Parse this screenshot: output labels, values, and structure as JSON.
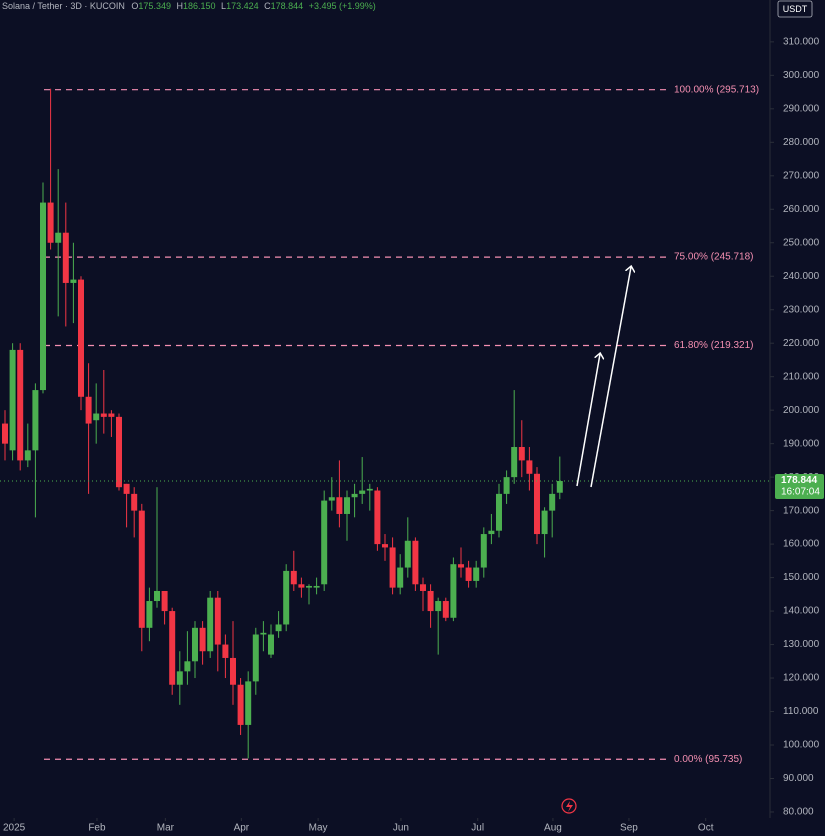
{
  "header": {
    "symbol": "Solana / Tether · 3D · KUCOIN",
    "o_key": "O",
    "open": "175.349",
    "h_key": "H",
    "high": "186.150",
    "l_key": "L",
    "low": "173.424",
    "c_key": "C",
    "close": "178.844",
    "change": "+3.495 (+1.99%)",
    "currency": "USDT"
  },
  "chart_data": {
    "type": "candlestick",
    "up_color": "#4caf50",
    "down_color": "#f23645",
    "open": [
      196,
      188,
      218,
      185,
      188,
      206,
      262,
      250,
      253,
      238,
      239,
      204,
      197,
      199,
      199,
      198,
      178,
      175,
      170,
      135,
      143,
      146,
      140,
      118,
      122,
      125,
      135,
      128,
      144,
      130,
      126,
      118,
      106,
      119,
      133,
      127,
      134,
      136,
      152,
      148,
      147,
      147,
      148,
      173,
      174,
      169,
      174,
      175,
      176,
      176,
      160,
      159,
      147,
      153,
      161,
      148,
      146,
      140,
      143,
      138,
      154,
      153,
      149,
      153,
      163,
      164,
      175,
      180,
      189,
      185,
      181,
      163,
      170,
      175.349
    ],
    "high": [
      200,
      220,
      220,
      196,
      208,
      268,
      296,
      272,
      262,
      250,
      240,
      214,
      208,
      212,
      200,
      199,
      178,
      177,
      172,
      147,
      177,
      146,
      141,
      128,
      134,
      137,
      137,
      146,
      146,
      133,
      137,
      120,
      122,
      135,
      137,
      136,
      140,
      154,
      158,
      150,
      148,
      150,
      176,
      180,
      185,
      176,
      178,
      186,
      178,
      177,
      163,
      162,
      157,
      168,
      162,
      150,
      148,
      144,
      144,
      156,
      159,
      155,
      155,
      165,
      169,
      178,
      182,
      206,
      197,
      189,
      183,
      171,
      178,
      186.15
    ],
    "low": [
      185,
      185,
      182,
      183,
      168,
      205,
      248,
      228,
      225,
      226,
      200,
      175,
      190,
      193,
      192,
      176,
      165,
      162,
      128,
      131,
      141,
      136,
      115,
      112,
      118,
      120,
      124,
      126,
      122,
      120,
      112,
      103,
      96,
      115,
      128,
      126,
      132,
      134,
      146,
      144,
      142,
      145,
      146,
      170,
      165,
      161,
      168,
      172,
      170,
      158,
      155,
      145,
      145,
      150,
      146,
      140,
      135,
      127,
      137,
      137,
      150,
      147,
      147,
      150,
      160,
      162,
      172,
      178,
      180,
      176,
      160,
      156,
      162,
      173.424
    ],
    "close": [
      190,
      218,
      185,
      188,
      206,
      262,
      250,
      253,
      238,
      239,
      204,
      196,
      199,
      198,
      198,
      177,
      175,
      170,
      135,
      143,
      146,
      140,
      118,
      122,
      125,
      135,
      128,
      144,
      130,
      126,
      118,
      106,
      119,
      133,
      133.5,
      133,
      136,
      152,
      148,
      147,
      147.5,
      147.5,
      173,
      174,
      169,
      174,
      175,
      176,
      176.5,
      160,
      159,
      147,
      153,
      161,
      148,
      146,
      140,
      143,
      138,
      154,
      153,
      149,
      153,
      163,
      164,
      175,
      180,
      189,
      185,
      181,
      163,
      170,
      175,
      178.844
    ],
    "xlim": [
      -0.658,
      100.66
    ],
    "xticks": [
      {
        "value": 1.2,
        "label": "2025"
      },
      {
        "value": 12.1,
        "label": "Feb"
      },
      {
        "value": 21.1,
        "label": "Mar"
      },
      {
        "value": 31.1,
        "label": "Apr"
      },
      {
        "value": 41.2,
        "label": "May"
      },
      {
        "value": 52.1,
        "label": "Jun"
      },
      {
        "value": 62.2,
        "label": "Jul"
      },
      {
        "value": 72.1,
        "label": "Aug"
      },
      {
        "value": 82.1,
        "label": "Sep"
      },
      {
        "value": 92.2,
        "label": "Oct"
      }
    ],
    "ylim": [
      78.2,
      322.5
    ],
    "yticks": [
      {
        "value": 80,
        "label": "80.000"
      },
      {
        "value": 90,
        "label": "90.000"
      },
      {
        "value": 100,
        "label": "100.000"
      },
      {
        "value": 110,
        "label": "110.000"
      },
      {
        "value": 120,
        "label": "120.000"
      },
      {
        "value": 130,
        "label": "130.000"
      },
      {
        "value": 140,
        "label": "140.000"
      },
      {
        "value": 150,
        "label": "150.000"
      },
      {
        "value": 160,
        "label": "160.000"
      },
      {
        "value": 170,
        "label": "170.000"
      },
      {
        "value": 180,
        "label": "180.000"
      },
      {
        "value": 190,
        "label": "190.000"
      },
      {
        "value": 200,
        "label": "200.000"
      },
      {
        "value": 210,
        "label": "210.000"
      },
      {
        "value": 220,
        "label": "220.000"
      },
      {
        "value": 230,
        "label": "230.000"
      },
      {
        "value": 240,
        "label": "240.000"
      },
      {
        "value": 250,
        "label": "250.000"
      },
      {
        "value": 260,
        "label": "260.000"
      },
      {
        "value": 270,
        "label": "270.000"
      },
      {
        "value": 280,
        "label": "280.000"
      },
      {
        "value": 290,
        "label": "290.000"
      },
      {
        "value": 300,
        "label": "300.000"
      },
      {
        "value": 310,
        "label": "310.000"
      }
    ],
    "fib_color": "#f48fb1",
    "fib_levels": [
      {
        "value": 295.713,
        "label": "100.00% (295.713)"
      },
      {
        "value": 245.718,
        "label": "75.00% (245.718)"
      },
      {
        "value": 219.321,
        "label": "61.80% (219.321)"
      },
      {
        "value": 95.735,
        "label": "0.00% (95.735)"
      }
    ],
    "last_price": {
      "value": 178.844,
      "label": "178.844",
      "countdown": "16:07:04"
    }
  }
}
